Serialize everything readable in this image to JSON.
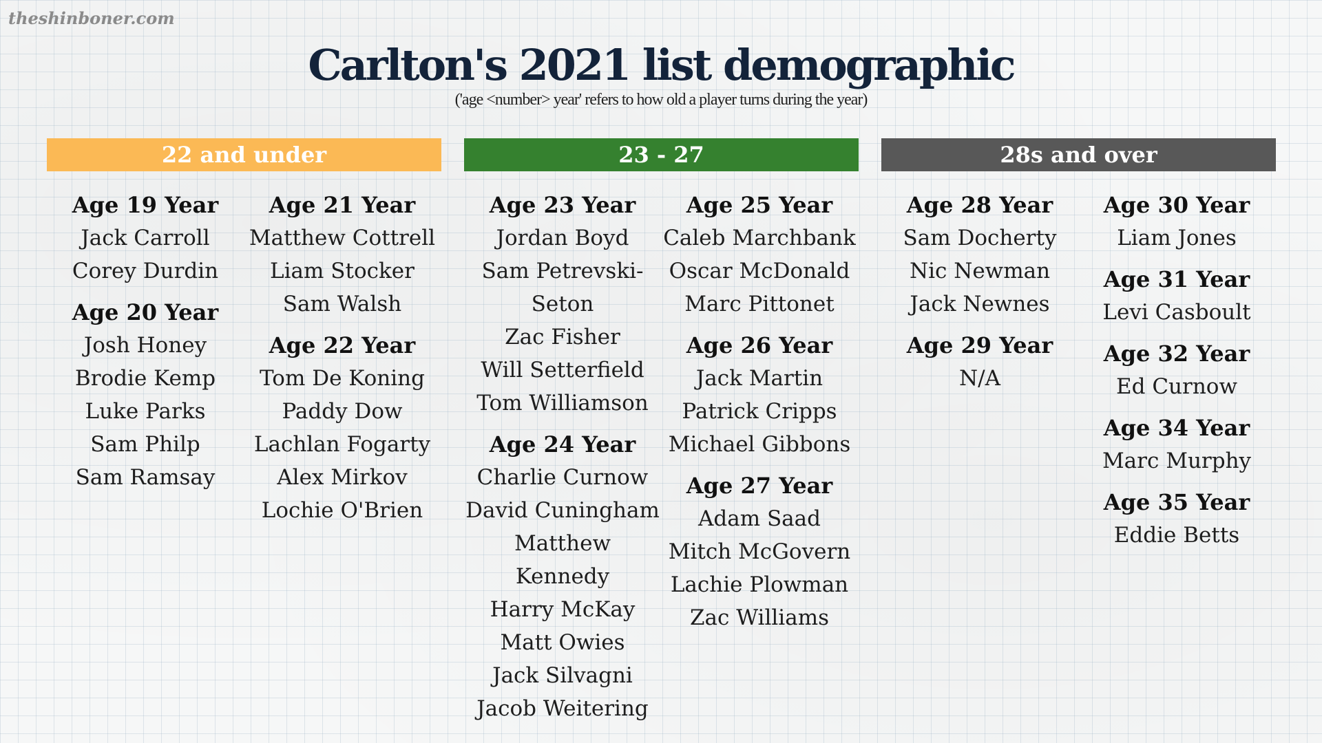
{
  "watermark": "theshinboner.com",
  "title": "Carlton's 2021 list demographic",
  "subtitle": "('age <number> year' refers to how old a player turns during the year)",
  "colors": {
    "under": "#fbb955",
    "mid": "#35812f",
    "over": "#585858",
    "title": "#13233a"
  },
  "groups": [
    {
      "label": "22 and under",
      "columns": [
        [
          {
            "age": "Age 19 Year",
            "players": [
              "Jack Carroll",
              "Corey Durdin"
            ]
          },
          {
            "age": "Age 20 Year",
            "players": [
              "Josh Honey",
              "Brodie Kemp",
              "Luke Parks",
              "Sam Philp",
              "Sam Ramsay"
            ]
          }
        ],
        [
          {
            "age": "Age 21 Year",
            "players": [
              "Matthew Cottrell",
              "Liam Stocker",
              "Sam Walsh"
            ]
          },
          {
            "age": "Age 22 Year",
            "players": [
              "Tom De Koning",
              "Paddy Dow",
              "Lachlan Fogarty",
              "Alex Mirkov",
              "Lochie O'Brien"
            ]
          }
        ]
      ]
    },
    {
      "label": "23 - 27",
      "columns": [
        [
          {
            "age": "Age 23 Year",
            "players": [
              "Jordan Boyd",
              "Sam Petrevski-",
              "Seton",
              "Zac Fisher",
              "Will Setterfield",
              "Tom Williamson"
            ]
          },
          {
            "age": "Age 24 Year",
            "players": [
              "Charlie Curnow",
              "David Cuningham",
              "Matthew Kennedy",
              "Harry McKay",
              "Matt Owies",
              "Jack Silvagni",
              "Jacob Weitering"
            ]
          }
        ],
        [
          {
            "age": "Age 25 Year",
            "players": [
              "Caleb Marchbank",
              "Oscar McDonald",
              "Marc Pittonet"
            ]
          },
          {
            "age": "Age 26 Year",
            "players": [
              "Jack Martin",
              "Patrick Cripps",
              "Michael Gibbons"
            ]
          },
          {
            "age": "Age 27 Year",
            "players": [
              "Adam Saad",
              "Mitch McGovern",
              "Lachie Plowman",
              "Zac Williams"
            ]
          }
        ]
      ]
    },
    {
      "label": "28s and over",
      "columns": [
        [
          {
            "age": "Age 28 Year",
            "players": [
              "Sam Docherty",
              "Nic Newman",
              "Jack Newnes"
            ]
          },
          {
            "age": "Age 29 Year",
            "players": [
              "N/A"
            ]
          }
        ],
        [
          {
            "age": "Age 30 Year",
            "players": [
              "Liam Jones"
            ]
          },
          {
            "age": "Age 31 Year",
            "players": [
              "Levi Casboult"
            ]
          },
          {
            "age": "Age 32 Year",
            "players": [
              "Ed Curnow"
            ]
          },
          {
            "age": "Age 34 Year",
            "players": [
              "Marc Murphy"
            ]
          },
          {
            "age": "Age 35 Year",
            "players": [
              "Eddie Betts"
            ]
          }
        ]
      ]
    }
  ]
}
